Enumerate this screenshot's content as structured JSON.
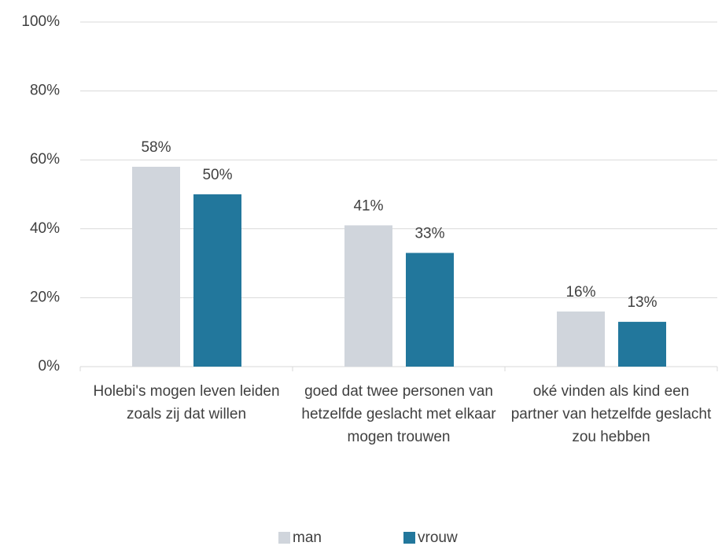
{
  "chart_data": {
    "type": "bar",
    "categories": [
      "Holebi's mogen leven leiden zoals zij dat willen",
      "goed dat twee personen van hetzelfde geslacht met elkaar mogen trouwen",
      "oké vinden als kind een partner van hetzelfde geslacht zou hebben"
    ],
    "series": [
      {
        "name": "man",
        "color": "#d0d5dc",
        "values": [
          58,
          41,
          16
        ],
        "value_labels": [
          "58%",
          "41%",
          "16%"
        ]
      },
      {
        "name": "vrouw",
        "color": "#22779c",
        "values": [
          50,
          33,
          13
        ],
        "value_labels": [
          "50%",
          "33%",
          "13%"
        ]
      }
    ],
    "ylim": [
      0,
      100
    ],
    "yticks": [
      {
        "value": 0,
        "label": "0%"
      },
      {
        "value": 20,
        "label": "20%"
      },
      {
        "value": 40,
        "label": "40%"
      },
      {
        "value": 60,
        "label": "60%"
      },
      {
        "value": 80,
        "label": "80%"
      },
      {
        "value": 100,
        "label": "100%"
      }
    ],
    "grid": true,
    "legend": "bottom"
  }
}
